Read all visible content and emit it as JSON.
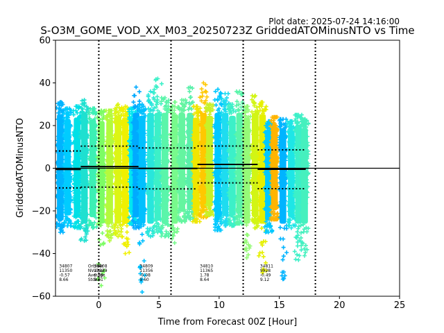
{
  "chart_data": {
    "type": "scatter",
    "title": "S-O3M_GOME_VOD_XX_M03_20250723Z GriddedATOMinusNTO vs Time",
    "plot_date": "Plot date: 2025-07-24 14:16:00",
    "xlabel": "Time from Forecast 00Z [Hour]",
    "ylabel": "GriddedATOMinusNTO",
    "xlim": [
      -3.6,
      25
    ],
    "ylim": [
      -60,
      60
    ],
    "xticks": [
      0,
      5,
      10,
      15,
      20,
      25
    ],
    "yticks": [
      -60,
      -40,
      -20,
      0,
      20,
      40,
      60
    ],
    "grid": false,
    "marker": "+",
    "forecast_lines_x": [
      0,
      6,
      12,
      18
    ],
    "zero_line_y": 0,
    "scan_columns": [
      {
        "x": -3.2,
        "ymin": -30,
        "ymax": 31,
        "color": "#00b4ff"
      },
      {
        "x": -2.6,
        "ymin": -27,
        "ymax": 28,
        "color": "#00ccff"
      },
      {
        "x": -1.8,
        "ymin": -28,
        "ymax": 29,
        "color": "#00e0e6"
      },
      {
        "x": -1.2,
        "ymin": -34,
        "ymax": 32,
        "color": "#1ee0d0"
      },
      {
        "x": -0.5,
        "ymin": -28,
        "ymax": 28,
        "color": "#3cf0b4"
      },
      {
        "x": 0.2,
        "ymin": -55,
        "ymax": 27,
        "color": "#7cfc64"
      },
      {
        "x": 0.9,
        "ymin": -34,
        "ymax": 27,
        "color": "#b4fa3c"
      },
      {
        "x": 1.6,
        "ymin": -32,
        "ymax": 30,
        "color": "#dcf514"
      },
      {
        "x": 2.2,
        "ymin": -40,
        "ymax": 29,
        "color": "#f0f000"
      },
      {
        "x": 2.8,
        "ymin": -26,
        "ymax": 28,
        "color": "#00e6f0"
      },
      {
        "x": 3.1,
        "ymin": -28,
        "ymax": 38,
        "color": "#00aaff"
      },
      {
        "x": 3.6,
        "ymin": -58,
        "ymax": 30,
        "color": "#00c0ff"
      },
      {
        "x": 4.3,
        "ymin": -32,
        "ymax": 36,
        "color": "#28e6dc"
      },
      {
        "x": 4.9,
        "ymin": -30,
        "ymax": 42,
        "color": "#3cf0c8"
      },
      {
        "x": 5.5,
        "ymin": -32,
        "ymax": 33,
        "color": "#5af5aa"
      },
      {
        "x": 6.3,
        "ymin": -35,
        "ymax": 31,
        "color": "#78fa8c"
      },
      {
        "x": 6.9,
        "ymin": -25,
        "ymax": 32,
        "color": "#64f5a0"
      },
      {
        "x": 7.6,
        "ymin": -24,
        "ymax": 38,
        "color": "#5af0aa"
      },
      {
        "x": 8.1,
        "ymin": -25,
        "ymax": 29,
        "color": "#f0e600"
      },
      {
        "x": 8.7,
        "ymin": -23,
        "ymax": 40,
        "color": "#ffc800"
      },
      {
        "x": 9.2,
        "ymin": -22,
        "ymax": 30,
        "color": "#c8f028"
      },
      {
        "x": 9.9,
        "ymin": -29,
        "ymax": 37,
        "color": "#00c8ff"
      },
      {
        "x": 10.5,
        "ymin": -27,
        "ymax": 35,
        "color": "#1edcf0"
      },
      {
        "x": 11.1,
        "ymin": -27,
        "ymax": 30,
        "color": "#3cf0c8"
      },
      {
        "x": 11.7,
        "ymin": -26,
        "ymax": 36,
        "color": "#5af5aa"
      },
      {
        "x": 12.3,
        "ymin": -42,
        "ymax": 29,
        "color": "#96fa78"
      },
      {
        "x": 13.0,
        "ymin": -28,
        "ymax": 34,
        "color": "#d2f514"
      },
      {
        "x": 13.6,
        "ymin": -49,
        "ymax": 31,
        "color": "#e6f000"
      },
      {
        "x": 14.1,
        "ymin": -30,
        "ymax": 22,
        "color": "#00c8ff"
      },
      {
        "x": 14.6,
        "ymin": -24,
        "ymax": 24,
        "color": "#ffb400"
      },
      {
        "x": 15.3,
        "ymin": -52,
        "ymax": 23,
        "color": "#00b4ff"
      },
      {
        "x": 16.0,
        "ymin": -28,
        "ymax": 22,
        "color": "#1ee6e6"
      },
      {
        "x": 16.6,
        "ymin": -43,
        "ymax": 25,
        "color": "#3cf0c8"
      },
      {
        "x": 17.1,
        "ymin": -41,
        "ymax": 23,
        "color": "#46f0be"
      }
    ],
    "orbit_stats": [
      {
        "x_start": -3.6,
        "x_end": -1.5,
        "mean": -0.57,
        "stdev": 8.66
      },
      {
        "x_start": -1.5,
        "x_end": 3.3,
        "mean": 0.76,
        "stdev": 9.61
      },
      {
        "x_start": 3.3,
        "x_end": 8.2,
        "mean": -0.08,
        "stdev": 9.6
      },
      {
        "x_start": 8.2,
        "x_end": 13.2,
        "mean": 1.78,
        "stdev": 8.64
      },
      {
        "x_start": 13.2,
        "x_end": 17.2,
        "mean": -0.49,
        "stdev": 9.12
      }
    ],
    "annotations": [
      {
        "x": -3.3,
        "lines": [
          "34807",
          "11350",
          "-0.57",
          "8.66"
        ]
      },
      {
        "x": -0.9,
        "lines": [
          "OrbitNr",
          "NValues",
          "Average",
          "Stdev"
        ]
      },
      {
        "x": -0.4,
        "lines": [
          "34808",
          "11329",
          "0.76",
          "9.61"
        ]
      },
      {
        "x": 3.4,
        "lines": [
          "34809",
          "11356",
          "-0.08",
          "9.60"
        ]
      },
      {
        "x": 8.4,
        "lines": [
          "34810",
          "11365",
          "1.78",
          "8.64"
        ]
      },
      {
        "x": 13.4,
        "lines": [
          "34811",
          "9928",
          "-0.49",
          "9.12"
        ]
      }
    ],
    "annotation_y_top": -46.5,
    "annotation_line_step": 2.1
  }
}
